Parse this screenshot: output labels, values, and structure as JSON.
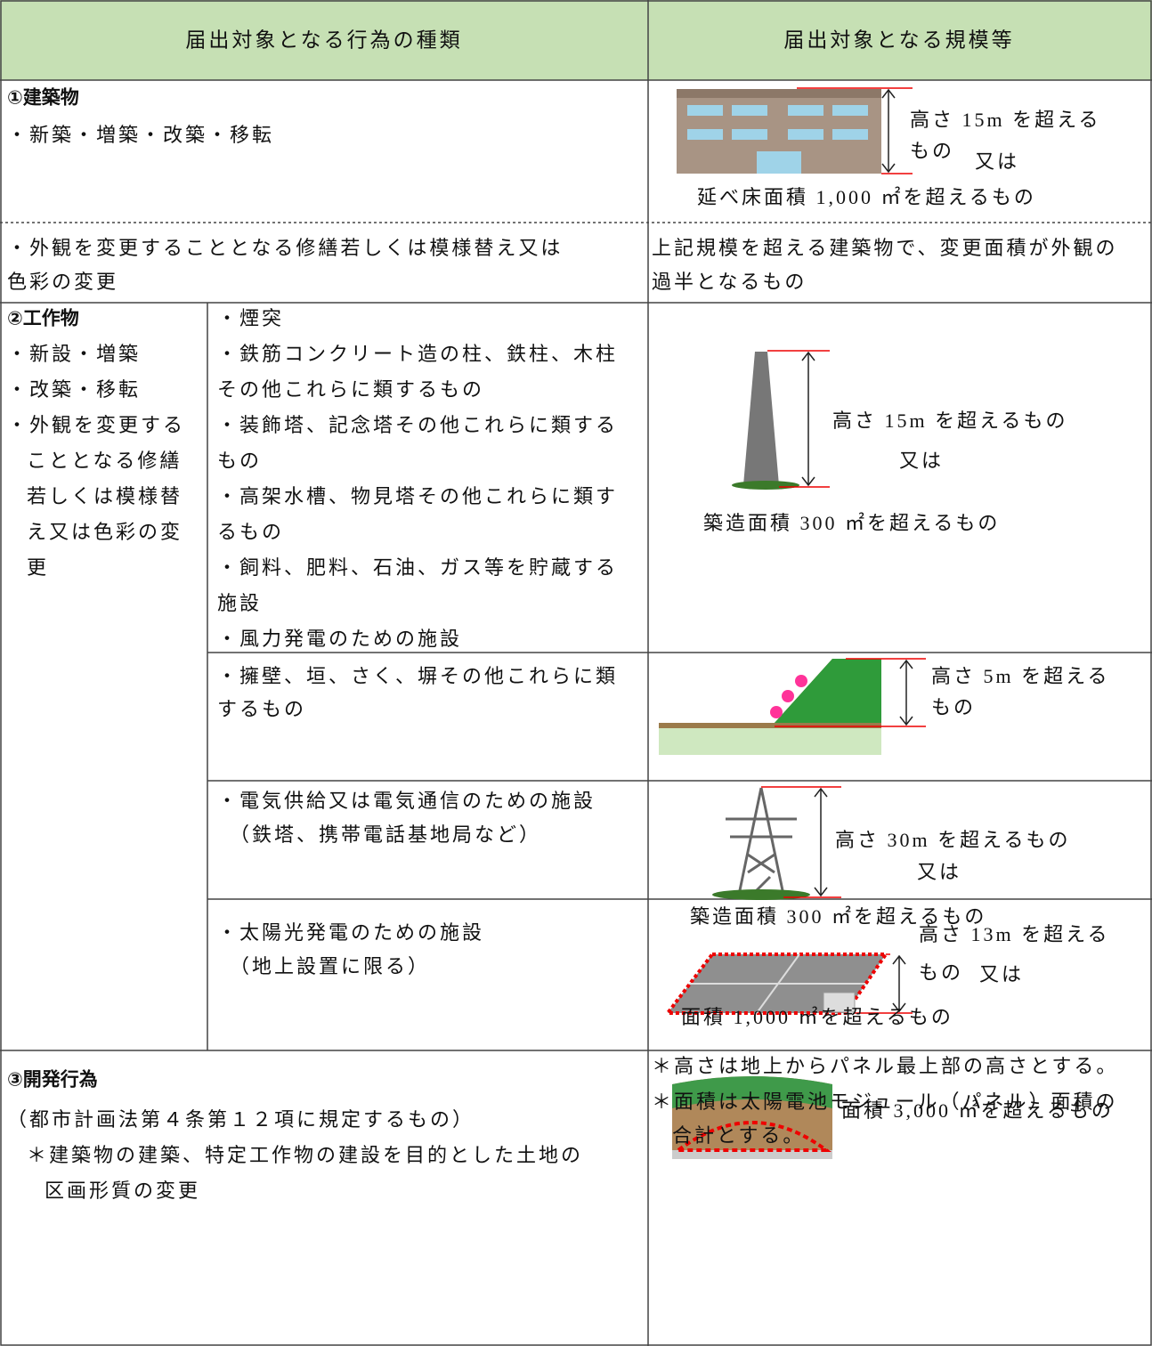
{
  "header": {
    "columns": [
      "届出対象となる行為の種類",
      "届出対象となる規模等"
    ]
  },
  "building": {
    "title": "①建築物",
    "items": [
      "・新築・増築・改築・移転"
    ],
    "scale": [
      "高さ 15m を超える",
      "もの",
      "又は",
      "延べ床面積 1,000 ㎡を超えるもの"
    ]
  },
  "exterior": {
    "items": [
      "・外観を変更することとなる修繕若しくは模様替え又は",
      "色彩の変更"
    ],
    "scale": [
      "上記規模を超える建築物で、変更面積が外観の",
      "過半となるもの"
    ]
  },
  "structure": {
    "title": "②工作物",
    "items": [
      "・新設・増築",
      "・改築・移転",
      "・外観を変更する",
      "こととなる修繕",
      "若しくは模様替",
      "え又は色彩の変",
      "更"
    ],
    "groups": [
      {
        "items": [
          "・煙突",
          "・鉄筋コンクリート造の柱、鉄柱、木柱",
          "その他これらに類するもの",
          "・装飾塔、記念塔その他これらに類する",
          "もの",
          "・高架水槽、物見塔その他これらに類す",
          "るもの",
          "・飼料、肥料、石油、ガス等を貯蔵する",
          "施設",
          "・風力発電のための施設"
        ],
        "scale": [
          "高さ 15m を超えるもの",
          "又は",
          "築造面積 300 ㎡を超えるもの"
        ]
      },
      {
        "items": [
          "・擁壁、垣、さく、塀その他これらに類",
          "するもの"
        ],
        "scale": [
          "高さ 5m を超える",
          "もの"
        ]
      },
      {
        "items": [
          "・電気供給又は電気通信のための施設",
          "（鉄塔、携帯電話基地局など）"
        ],
        "scale": [
          "高さ 30m を超えるもの",
          "又は",
          "築造面積 300 ㎡を超えるもの"
        ]
      },
      {
        "items": [
          "・太陽光発電のための施設",
          "（地上設置に限る）"
        ],
        "scale": [
          "高さ 13m を超える",
          "もの",
          "又は",
          "面積 1,000 ㎡を超えるもの"
        ],
        "notes": [
          "＊高さは地上からパネル最上部の高さとする。",
          "＊面積は太陽電池モジュール（パネル）面積の",
          "合計とする。"
        ]
      }
    ]
  },
  "development": {
    "title": "③開発行為",
    "items": [
      "（都市計画法第４条第１２項に規定するもの）",
      "＊建築物の建築、特定工作物の建設を目的とした土地の",
      "区画形質の変更"
    ],
    "scale": [
      "面積 3,000 ㎡を超えるもの"
    ]
  }
}
